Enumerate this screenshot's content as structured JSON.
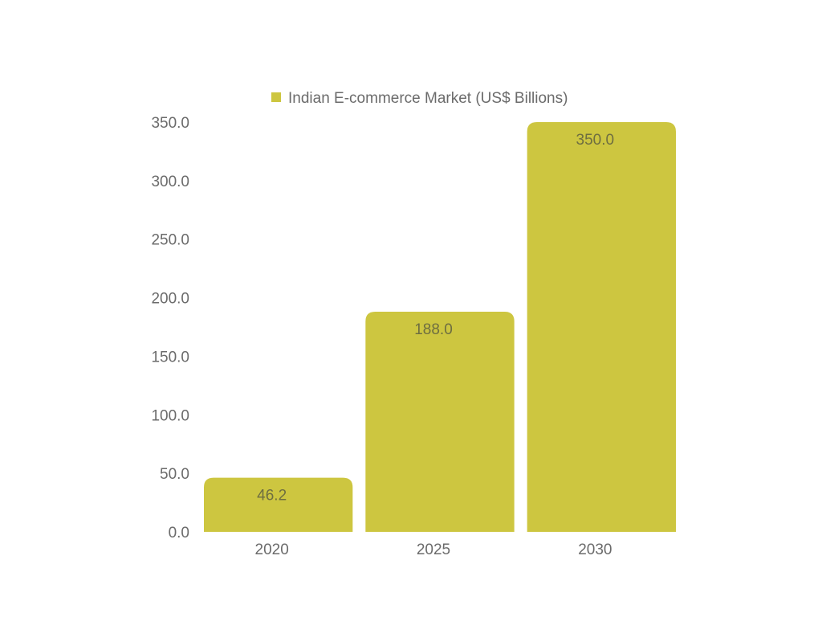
{
  "chart_data": {
    "type": "bar",
    "categories": [
      "2020",
      "2025",
      "2030"
    ],
    "series": [
      {
        "name": "Indian E-commerce Market (US$ Billions)",
        "values": [
          46.2,
          188.0,
          350.0
        ],
        "color": "#cdc640"
      }
    ],
    "data_labels": [
      "46.2",
      "188.0",
      "350.0"
    ],
    "yticks": [
      "0.0",
      "50.0",
      "100.0",
      "150.0",
      "200.0",
      "250.0",
      "300.0",
      "350.0"
    ],
    "ylim": [
      0,
      350
    ],
    "title": "",
    "xlabel": "",
    "ylabel": "",
    "grid": false,
    "legend_position": "top-center"
  }
}
